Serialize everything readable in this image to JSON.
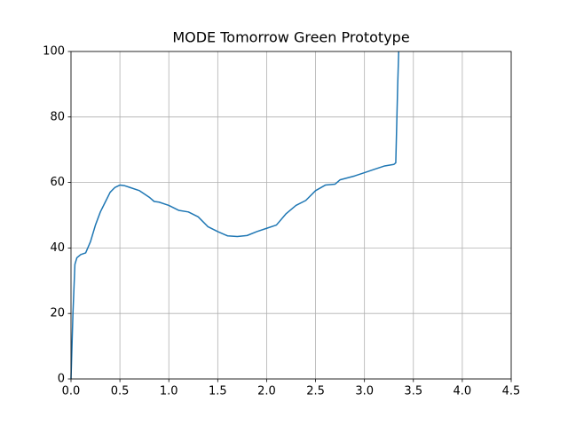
{
  "chart_data": {
    "type": "line",
    "title": "MODE Tomorrow Green Prototype",
    "x": [
      0,
      0.02,
      0.04,
      0.06,
      0.1,
      0.15,
      0.2,
      0.25,
      0.3,
      0.35,
      0.4,
      0.45,
      0.5,
      0.55,
      0.6,
      0.7,
      0.8,
      0.85,
      0.9,
      1.0,
      1.1,
      1.2,
      1.3,
      1.4,
      1.5,
      1.6,
      1.7,
      1.8,
      1.9,
      2.0,
      2.1,
      2.2,
      2.3,
      2.4,
      2.5,
      2.6,
      2.7,
      2.75,
      2.9,
      3.0,
      3.1,
      3.2,
      3.3,
      3.32,
      3.34,
      3.35
    ],
    "values": [
      0,
      20,
      35,
      37,
      38,
      38.5,
      42,
      47,
      51,
      54,
      57,
      58.5,
      59.2,
      59,
      58.5,
      57.5,
      55.5,
      54.2,
      54,
      53,
      51.5,
      51,
      49.5,
      46.5,
      45,
      43.7,
      43.5,
      43.8,
      45,
      46,
      47,
      50.5,
      53,
      54.5,
      57.5,
      59.2,
      59.5,
      60.8,
      62,
      63,
      64,
      65,
      65.5,
      66,
      90,
      100
    ],
    "color": "#1f77b4",
    "xlim": [
      0,
      4.5
    ],
    "xticks": [
      {
        "value": 0,
        "label": "0.0"
      },
      0.5,
      {
        "value": 1,
        "label": "1.0"
      },
      1.5,
      {
        "value": 2,
        "label": "2.0"
      },
      2.5,
      {
        "value": 3,
        "label": "3.0"
      },
      3.5,
      {
        "value": 4,
        "label": "4.0"
      },
      4.5
    ],
    "ylim": [
      0,
      100
    ],
    "yticks": [
      0,
      20,
      40,
      60,
      80,
      100
    ],
    "grid": true
  }
}
